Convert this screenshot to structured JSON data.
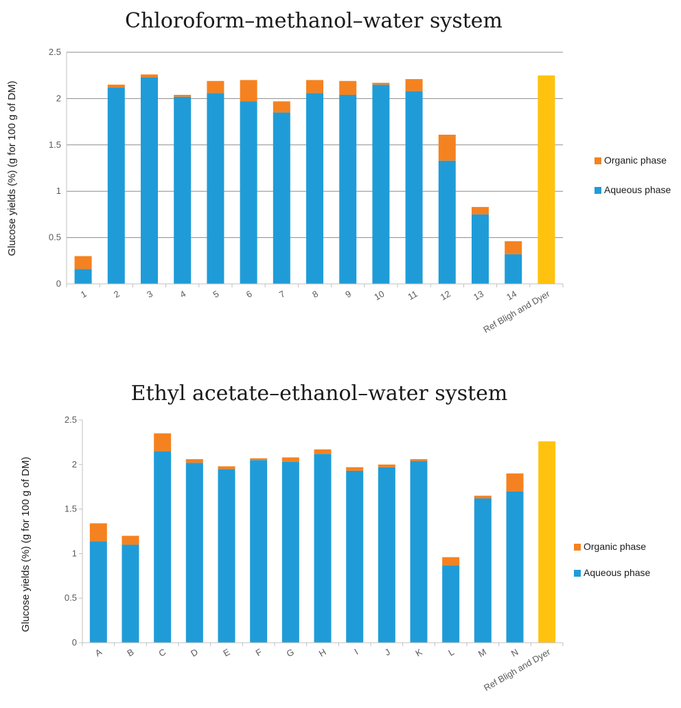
{
  "colors": {
    "aqueous": "#1F9CD8",
    "organic": "#F58220",
    "reference": "#FFC20E",
    "grid": "#8C8C8C",
    "axis": "#BFBFBF"
  },
  "chart_data": [
    {
      "type": "bar",
      "stacked": true,
      "title": "Chloroform–methanol–water system",
      "ylabel": "Glucose yields (%) (g for 100 g of DM)",
      "ylim": [
        0,
        2.5
      ],
      "yticks": [
        "0",
        "0.5",
        "1",
        "1.5",
        "2",
        "2.5"
      ],
      "grid": true,
      "legend_position": "right",
      "categories": [
        "1",
        "2",
        "3",
        "4",
        "5",
        "6",
        "7",
        "8",
        "9",
        "10",
        "11",
        "12",
        "13",
        "14",
        "Ref  Bligh and Dyer"
      ],
      "series": [
        {
          "name": "Aqueous phase",
          "color_key": "aqueous",
          "values": [
            0.16,
            2.12,
            2.23,
            2.02,
            2.06,
            1.97,
            1.85,
            2.06,
            2.04,
            2.15,
            2.08,
            1.33,
            0.75,
            0.32,
            null
          ]
        },
        {
          "name": "Organic phase",
          "color_key": "organic",
          "values": [
            0.14,
            0.03,
            0.03,
            0.02,
            0.13,
            0.23,
            0.12,
            0.14,
            0.15,
            0.02,
            0.13,
            0.28,
            0.08,
            0.14,
            null
          ]
        },
        {
          "name": "",
          "color_key": "reference",
          "values": [
            null,
            null,
            null,
            null,
            null,
            null,
            null,
            null,
            null,
            null,
            null,
            null,
            null,
            null,
            2.25
          ]
        }
      ]
    },
    {
      "type": "bar",
      "stacked": true,
      "title": "Ethyl acetate–ethanol–water system",
      "ylabel": "Glucose yields (%) (g for 100 g of DM)",
      "ylim": [
        0,
        2.5
      ],
      "yticks": [
        "0",
        "0.5",
        "1",
        "1.5",
        "2",
        "2.5"
      ],
      "grid": false,
      "legend_position": "right",
      "categories": [
        "A",
        "B",
        "C",
        "D",
        "E",
        "F",
        "G",
        "H",
        "I",
        "J",
        "K",
        "L",
        "M",
        "N",
        "Ref  Bligh and Dyer"
      ],
      "series": [
        {
          "name": "Aqueous phase",
          "color_key": "aqueous",
          "values": [
            1.14,
            1.1,
            2.15,
            2.02,
            1.95,
            2.05,
            2.03,
            2.12,
            1.93,
            1.97,
            2.04,
            0.87,
            1.62,
            1.7,
            null
          ]
        },
        {
          "name": "Organic phase",
          "color_key": "organic",
          "values": [
            0.2,
            0.1,
            0.2,
            0.04,
            0.03,
            0.02,
            0.05,
            0.05,
            0.04,
            0.03,
            0.02,
            0.09,
            0.03,
            0.2,
            null
          ]
        },
        {
          "name": "",
          "color_key": "reference",
          "values": [
            null,
            null,
            null,
            null,
            null,
            null,
            null,
            null,
            null,
            null,
            null,
            null,
            null,
            null,
            2.26
          ]
        }
      ]
    }
  ]
}
